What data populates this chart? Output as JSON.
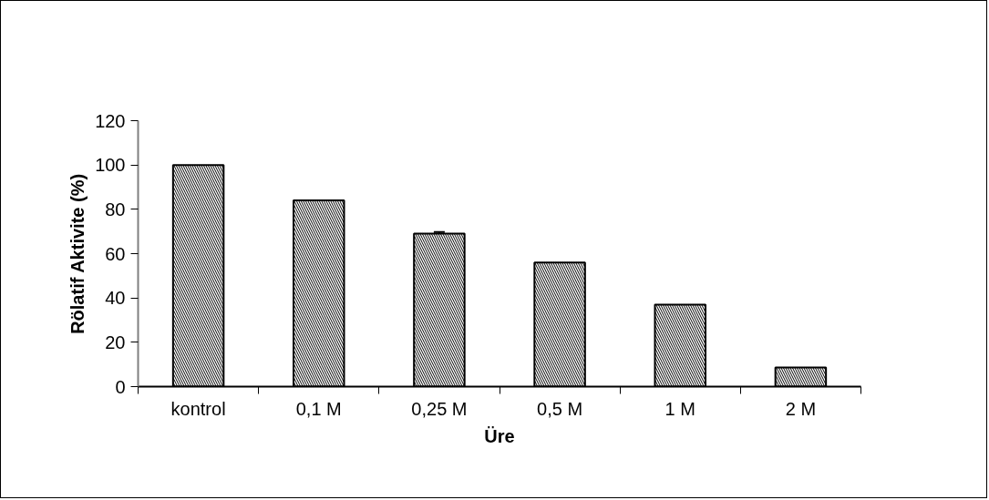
{
  "chart_data": {
    "type": "bar",
    "xlabel": "Üre",
    "ylabel": "Rölatif Aktivite (%)",
    "categories": [
      "kontrol",
      "0,1 M",
      "0,25 M",
      "0,5 M",
      "1 M",
      "2 M"
    ],
    "values": [
      100,
      84,
      69,
      56,
      37,
      8.6
    ],
    "errors": [
      null,
      null,
      0.8,
      null,
      null,
      null
    ],
    "color": "#ffffff",
    "ylim": [
      0,
      120
    ],
    "yticks": [
      0,
      20,
      40,
      60,
      80,
      100,
      120
    ],
    "grid": false
  }
}
